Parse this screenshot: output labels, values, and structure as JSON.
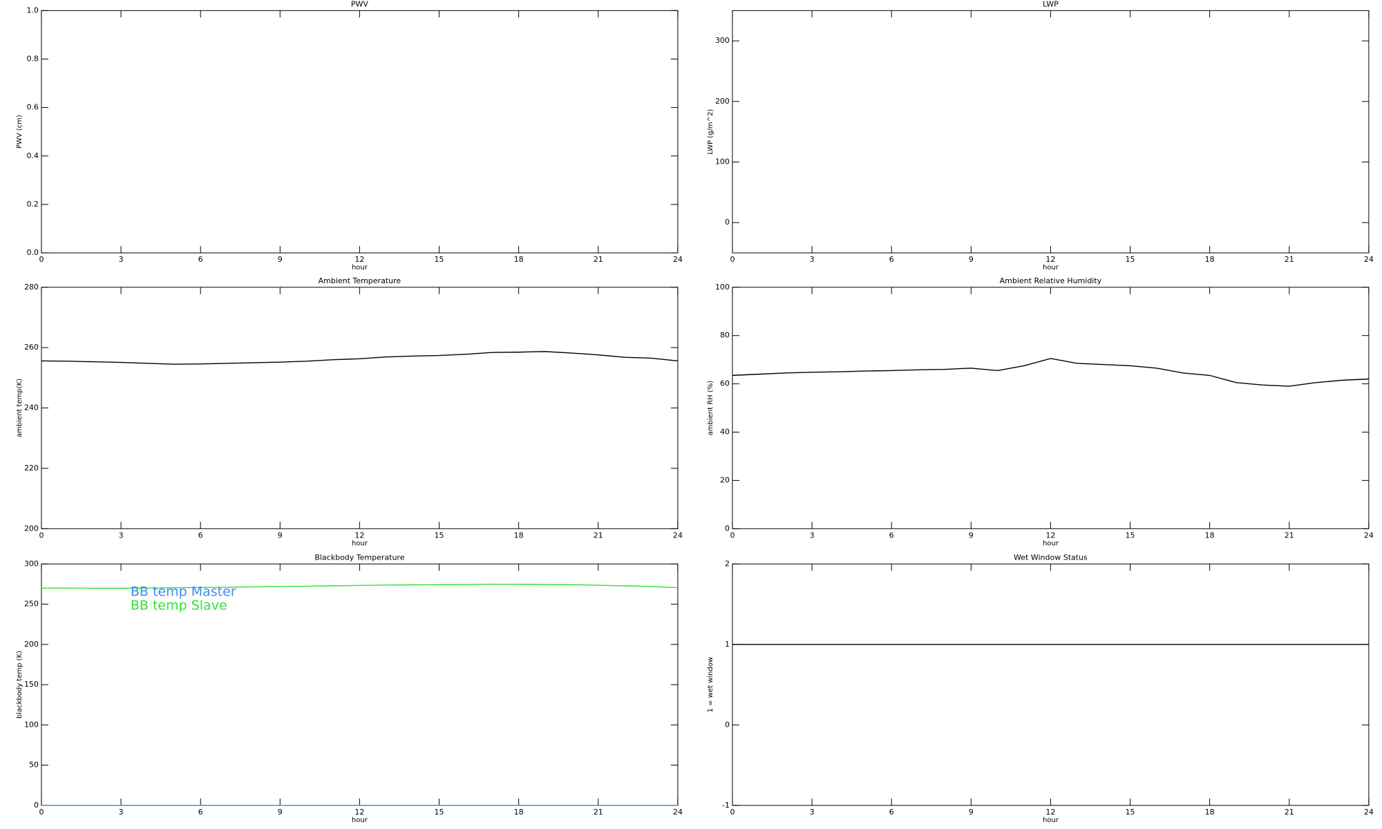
{
  "chart_data": [
    {
      "type": "line",
      "title": "PWV",
      "xlabel": "hour",
      "ylabel": "PWV (cm)",
      "xlim": [
        0,
        24
      ],
      "xticks": [
        0,
        3,
        6,
        9,
        12,
        15,
        18,
        21,
        24
      ],
      "ylim": [
        0,
        1
      ],
      "yticks": [
        {
          "value": 0,
          "label": "0.0"
        },
        0.2,
        0.4,
        0.6,
        0.8,
        {
          "value": 1,
          "label": "1.0"
        }
      ]
    },
    {
      "type": "line",
      "title": "LWP",
      "xlabel": "hour",
      "ylabel": "LWP (g/m^2)",
      "xlim": [
        0,
        24
      ],
      "xticks": [
        0,
        3,
        6,
        9,
        12,
        15,
        18,
        21,
        24
      ],
      "ylim": [
        -50,
        350
      ],
      "yticks": [
        0,
        100,
        200,
        300
      ]
    },
    {
      "type": "line",
      "title": "Ambient Temperature",
      "xlabel": "hour",
      "ylabel": "ambient temp(K)",
      "xlim": [
        0,
        24
      ],
      "xticks": [
        0,
        3,
        6,
        9,
        12,
        15,
        18,
        21,
        24
      ],
      "ylim": [
        200,
        280
      ],
      "yticks": [
        200,
        220,
        240,
        260,
        280
      ],
      "x": [
        0,
        1,
        2,
        3,
        4,
        5,
        6,
        7,
        8,
        9,
        10,
        11,
        12,
        13,
        14,
        15,
        16,
        17,
        18,
        19,
        20,
        21,
        22,
        23,
        24
      ],
      "series": [
        {
          "color": "#000000",
          "values": [
            255.6,
            255.5,
            255.3,
            255.1,
            254.8,
            254.5,
            254.6,
            254.8,
            255,
            255.2,
            255.5,
            256,
            256.3,
            256.9,
            257.2,
            257.4,
            257.8,
            258.4,
            258.5,
            258.7,
            258.2,
            257.6,
            256.8,
            256.5,
            255.6
          ]
        }
      ]
    },
    {
      "type": "line",
      "title": "Ambient Relative Humidity",
      "xlabel": "hour",
      "ylabel": "ambient RH (%)",
      "xlim": [
        0,
        24
      ],
      "xticks": [
        0,
        3,
        6,
        9,
        12,
        15,
        18,
        21,
        24
      ],
      "ylim": [
        0,
        100
      ],
      "yticks": [
        0,
        20,
        40,
        60,
        80,
        100
      ],
      "x": [
        0,
        1,
        2,
        3,
        4,
        5,
        6,
        7,
        8,
        9,
        10,
        11,
        12,
        13,
        14,
        15,
        16,
        17,
        18,
        19,
        20,
        21,
        22,
        23,
        24
      ],
      "series": [
        {
          "color": "#000000",
          "values": [
            63.5,
            64,
            64.5,
            64.8,
            65,
            65.3,
            65.5,
            65.8,
            66,
            66.5,
            65.5,
            67.5,
            70.5,
            68.5,
            68,
            67.5,
            66.5,
            64.5,
            63.5,
            60.5,
            59.5,
            59,
            60.5,
            61.5,
            62
          ]
        }
      ]
    },
    {
      "type": "line",
      "title": "Blackbody Temperature",
      "xlabel": "hour",
      "ylabel": "blackbody temp (K)",
      "xlim": [
        0,
        24
      ],
      "xticks": [
        0,
        3,
        6,
        9,
        12,
        15,
        18,
        21,
        24
      ],
      "ylim": [
        0,
        300
      ],
      "yticks": [
        0,
        50,
        100,
        150,
        200,
        250,
        300
      ],
      "legend": "upper left",
      "x": [
        0,
        1,
        2,
        3,
        4,
        5,
        6,
        7,
        8,
        9,
        10,
        11,
        12,
        13,
        14,
        15,
        16,
        17,
        18,
        19,
        20,
        21,
        22,
        23,
        24
      ],
      "series": [
        {
          "name": "BB temp Master",
          "color": "#3b8cf0",
          "values": [
            0,
            0,
            0,
            0,
            0,
            0,
            0,
            0,
            0,
            0,
            0,
            0,
            0,
            0,
            0,
            0,
            0,
            0,
            0,
            0,
            0,
            0,
            0,
            0,
            0
          ]
        },
        {
          "name": "BB temp Slave",
          "color": "#33e033",
          "values": [
            270,
            270,
            269.8,
            269.8,
            270,
            270.5,
            270.8,
            271,
            271.5,
            272,
            272.3,
            272.8,
            273.3,
            273.8,
            274,
            274.2,
            274.5,
            274.8,
            274.7,
            274.5,
            274.2,
            273.5,
            272.8,
            272,
            270.5
          ]
        }
      ]
    },
    {
      "type": "line",
      "title": "Wet Window Status",
      "xlabel": "hour",
      "ylabel": "1 = wet window",
      "xlim": [
        0,
        24
      ],
      "xticks": [
        0,
        3,
        6,
        9,
        12,
        15,
        18,
        21,
        24
      ],
      "ylim": [
        -1,
        2
      ],
      "yticks": [
        -1,
        0,
        1,
        2
      ],
      "x": [
        0,
        1,
        2,
        3,
        4,
        5,
        6,
        7,
        8,
        9,
        10,
        11,
        12,
        13,
        14,
        15,
        16,
        17,
        18,
        19,
        20,
        21,
        22,
        23,
        24
      ],
      "series": [
        {
          "color": "#000000",
          "values": [
            1,
            1,
            1,
            1,
            1,
            1,
            1,
            1,
            1,
            1,
            1,
            1,
            1,
            1,
            1,
            1,
            1,
            1,
            1,
            1,
            1,
            1,
            1,
            1,
            1
          ]
        }
      ]
    }
  ]
}
